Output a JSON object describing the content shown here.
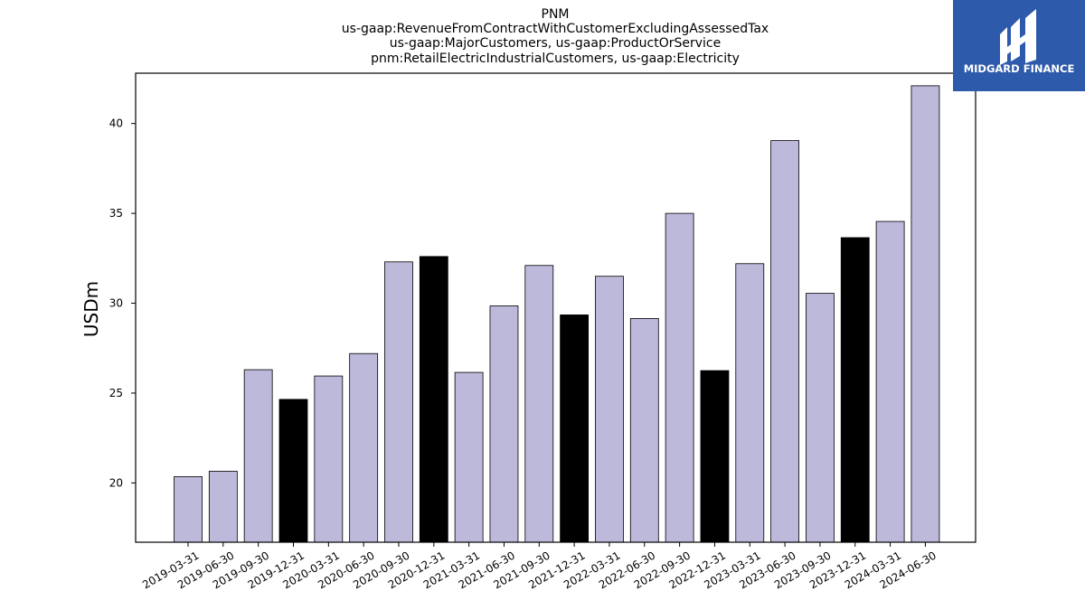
{
  "chart_data": {
    "type": "bar",
    "title": [
      "PNM",
      "us-gaap:RevenueFromContractWithCustomerExcludingAssessedTax",
      "us-gaap:MajorCustomers, us-gaap:ProductOrService",
      "pnm:RetailElectricIndustrialCustomers, us-gaap:Electricity"
    ],
    "xlabel": "",
    "ylabel": "USDm",
    "ylim": [
      16.7,
      42.8
    ],
    "yticks": [
      20,
      25,
      30,
      35,
      40
    ],
    "categories": [
      "2019-03-31",
      "2019-06-30",
      "2019-09-30",
      "2019-12-31",
      "2020-03-31",
      "2020-06-30",
      "2020-09-30",
      "2020-12-31",
      "2021-03-31",
      "2021-06-30",
      "2021-09-30",
      "2021-12-31",
      "2022-03-31",
      "2022-06-30",
      "2022-09-30",
      "2022-12-31",
      "2023-03-31",
      "2023-06-30",
      "2023-09-30",
      "2023-12-31",
      "2024-03-31",
      "2024-06-30"
    ],
    "values": [
      20.35,
      20.65,
      26.3,
      24.65,
      25.95,
      27.2,
      32.3,
      32.6,
      26.15,
      29.85,
      32.1,
      29.35,
      31.5,
      29.15,
      35.0,
      26.25,
      32.2,
      39.05,
      30.55,
      33.65,
      34.55,
      42.1
    ],
    "bar_colors": {
      "default": "#bcb9db",
      "highlight": "#000000"
    },
    "highlighted_categories": [
      "2019-12-31",
      "2020-12-31",
      "2021-12-31",
      "2022-12-31",
      "2023-12-31"
    ],
    "grid": false
  },
  "logo": {
    "text": "MIDGARD FINANCE",
    "background": "#2e5aac"
  }
}
